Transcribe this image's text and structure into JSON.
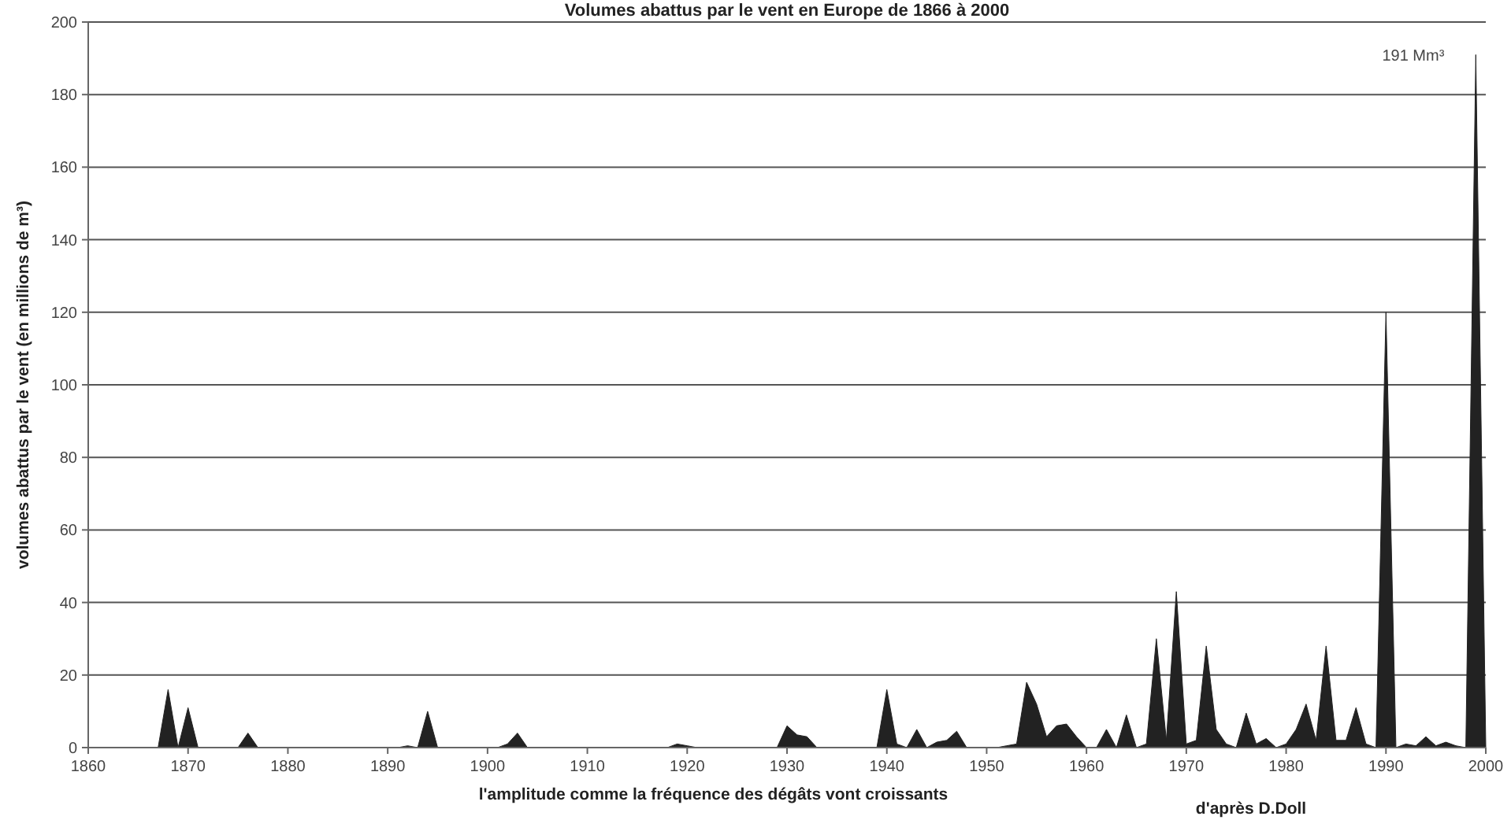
{
  "chart_data": {
    "type": "area",
    "title": "Volumes abattus par le vent en Europe de 1866 à 2000",
    "xlabel": "l'amplitude comme la fréquence des dégâts vont croissants",
    "ylabel": "volumes abattus par le vent (en millions de m³)",
    "x": [
      1866,
      1867,
      1868,
      1869,
      1870,
      1871,
      1872,
      1873,
      1874,
      1875,
      1876,
      1877,
      1878,
      1879,
      1880,
      1881,
      1882,
      1883,
      1884,
      1885,
      1886,
      1887,
      1888,
      1889,
      1890,
      1891,
      1892,
      1893,
      1894,
      1895,
      1896,
      1897,
      1898,
      1899,
      1900,
      1901,
      1902,
      1903,
      1904,
      1905,
      1906,
      1907,
      1908,
      1909,
      1910,
      1911,
      1912,
      1913,
      1914,
      1915,
      1916,
      1917,
      1918,
      1919,
      1920,
      1921,
      1922,
      1923,
      1924,
      1925,
      1926,
      1927,
      1928,
      1929,
      1930,
      1931,
      1932,
      1933,
      1934,
      1935,
      1936,
      1937,
      1938,
      1939,
      1940,
      1941,
      1942,
      1943,
      1944,
      1945,
      1946,
      1947,
      1948,
      1949,
      1950,
      1951,
      1952,
      1953,
      1954,
      1955,
      1956,
      1957,
      1958,
      1959,
      1960,
      1961,
      1962,
      1963,
      1964,
      1965,
      1966,
      1967,
      1968,
      1969,
      1970,
      1971,
      1972,
      1973,
      1974,
      1975,
      1976,
      1977,
      1978,
      1979,
      1980,
      1981,
      1982,
      1983,
      1984,
      1985,
      1986,
      1987,
      1988,
      1989,
      1990,
      1991,
      1992,
      1993,
      1994,
      1995,
      1996,
      1997,
      1998,
      1999,
      2000
    ],
    "series": [
      {
        "color": "#222222",
        "values": [
          0,
          0,
          16,
          0,
          11,
          0,
          0,
          0,
          0,
          0,
          4,
          0,
          0,
          0,
          0,
          0,
          0,
          0,
          0,
          0,
          0,
          0,
          0,
          0,
          0,
          0,
          0.5,
          0,
          10,
          0,
          0,
          0,
          0,
          0,
          0,
          0,
          1,
          4,
          0,
          0,
          0,
          0,
          0,
          0,
          0,
          0,
          0,
          0,
          0,
          0,
          0,
          0,
          0,
          1,
          0.5,
          0,
          0,
          0,
          0,
          0,
          0,
          0,
          0,
          0,
          6,
          3.5,
          3,
          0,
          0,
          0,
          0,
          0,
          0,
          0,
          16,
          1,
          0,
          5,
          0,
          1.5,
          2,
          4.5,
          0,
          0,
          0,
          0,
          0.5,
          1,
          18,
          12,
          3,
          6,
          6.5,
          3,
          0,
          0,
          5,
          0,
          9,
          0,
          1,
          30,
          2,
          43,
          1,
          2,
          28,
          5,
          1,
          0,
          9.5,
          1,
          2.5,
          0,
          1,
          5,
          12,
          2,
          28,
          2,
          2,
          11,
          1,
          0,
          120,
          0,
          1,
          0.5,
          3,
          0.5,
          1.5,
          0.5,
          0,
          191,
          0
        ]
      }
    ],
    "xlim": [
      1860,
      2000
    ],
    "xticks": [
      1860,
      1870,
      1880,
      1890,
      1900,
      1910,
      1920,
      1930,
      1940,
      1950,
      1960,
      1970,
      1980,
      1990,
      2000
    ],
    "ylim": [
      0,
      200
    ],
    "yticks": [
      0,
      20,
      40,
      60,
      80,
      100,
      120,
      140,
      160,
      180,
      200
    ],
    "grid": "y",
    "annotations": [
      {
        "text": "191 Mm³",
        "x": 1999,
        "y": 191
      },
      "d'après D.Doll"
    ]
  }
}
